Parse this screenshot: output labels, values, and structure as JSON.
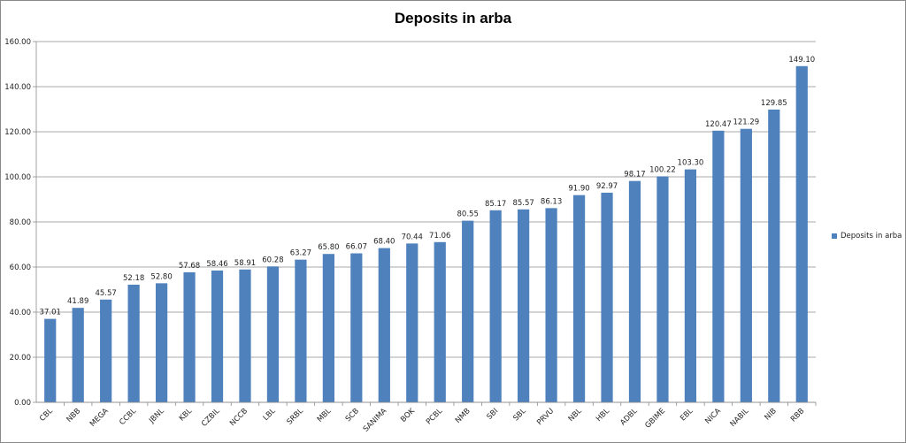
{
  "chart_data": {
    "type": "bar",
    "title": "Deposits in arba",
    "xlabel": "",
    "ylabel": "",
    "ylim": [
      0,
      160
    ],
    "ytick_step": 20,
    "y_tick_labels": [
      "0.00",
      "20.00",
      "40.00",
      "60.00",
      "80.00",
      "100.00",
      "120.00",
      "140.00",
      "160.00"
    ],
    "grid": true,
    "legend_position": "right",
    "bar_color": "#4F81BD",
    "categories": [
      "CBL",
      "NBB",
      "MEGA",
      "CCBL",
      "JBNL",
      "KBL",
      "CZBIL",
      "NCCB",
      "LBL",
      "SRBL",
      "MBL",
      "SCB",
      "SANIMA",
      "BOK",
      "PCBL",
      "NMB",
      "SBI",
      "SBL",
      "PRVU",
      "NBL",
      "HBL",
      "ADBL",
      "GBIME",
      "EBL",
      "NICA",
      "NABIL",
      "NIB",
      "RBB"
    ],
    "series": [
      {
        "name": "Deposits in arba",
        "values": [
          37.01,
          41.89,
          45.57,
          52.18,
          52.8,
          57.68,
          58.46,
          58.91,
          60.28,
          63.27,
          65.8,
          66.07,
          68.4,
          70.44,
          71.06,
          80.55,
          85.17,
          85.57,
          86.13,
          91.9,
          92.97,
          98.17,
          100.22,
          103.3,
          120.47,
          121.29,
          129.85,
          149.1
        ],
        "data_labels": [
          "37.01",
          "41.89",
          "45.57",
          "52.18",
          "52.80",
          "57.68",
          "58.46",
          "58.91",
          "60.28",
          "63.27",
          "65.80",
          "66.07",
          "68.40",
          "70.44",
          "71.06",
          "80.55",
          "85.17",
          "85.57",
          "86.13",
          "91.90",
          "92.97",
          "98.17",
          "100.22",
          "103.30",
          "120.47",
          "121.29",
          "129.85",
          "149.10"
        ]
      }
    ]
  }
}
